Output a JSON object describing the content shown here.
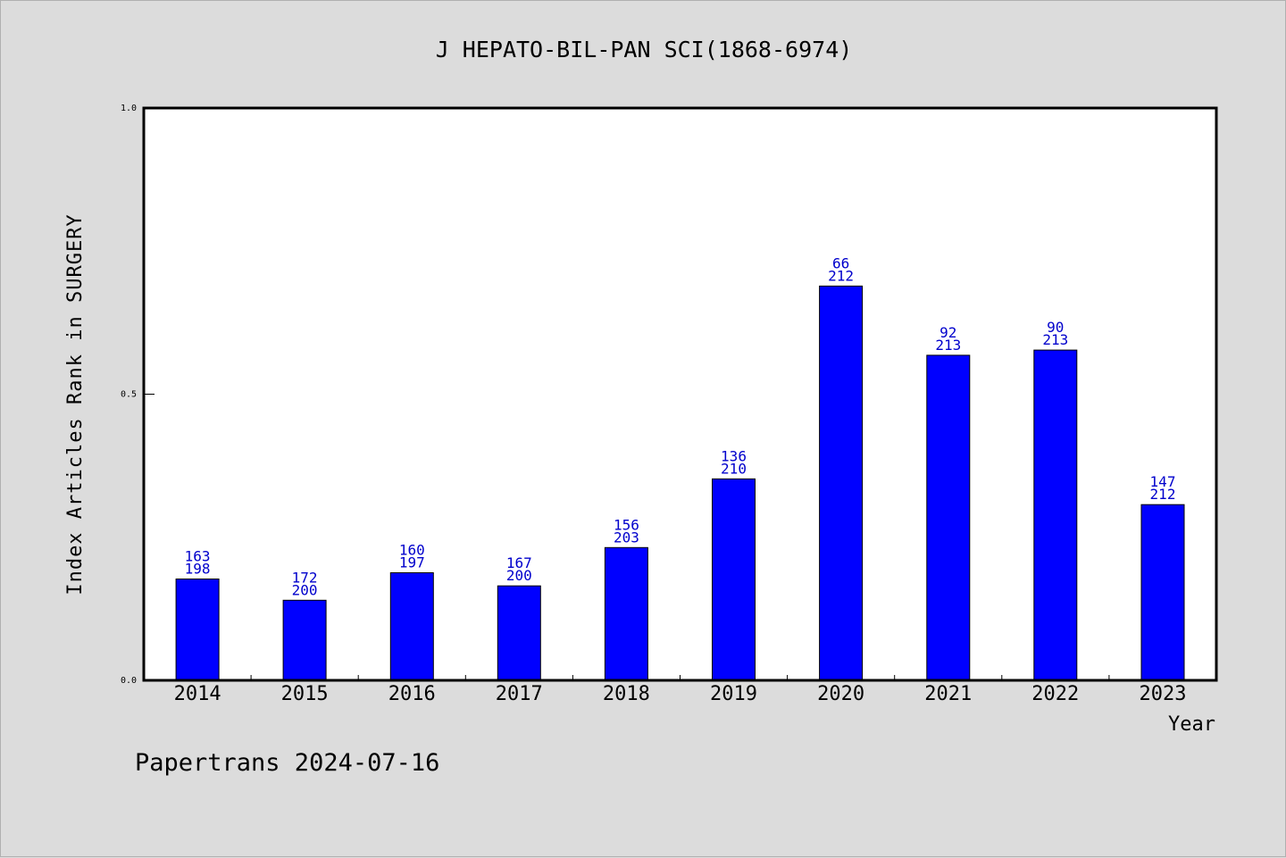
{
  "chart_data": {
    "type": "bar",
    "title": "J HEPATO-BIL-PAN SCI(1868-6974)",
    "xlabel": "Year",
    "ylabel": "Index Articles Rank in SURGERY",
    "ylim": [
      0,
      1.0
    ],
    "yticks": [
      "0.0",
      "0.5",
      "1.0"
    ],
    "ytick_values": [
      0.0,
      0.5,
      1.0
    ],
    "categories": [
      "2014",
      "2015",
      "2016",
      "2017",
      "2018",
      "2019",
      "2020",
      "2021",
      "2022",
      "2023"
    ],
    "values": [
      0.177,
      0.14,
      0.188,
      0.165,
      0.232,
      0.352,
      0.689,
      0.568,
      0.577,
      0.307
    ],
    "rank": [
      "163",
      "172",
      "160",
      "167",
      "156",
      "136",
      "66",
      "92",
      "90",
      "147"
    ],
    "total": [
      "198",
      "200",
      "197",
      "200",
      "203",
      "210",
      "212",
      "213",
      "213",
      "212"
    ],
    "grid": false,
    "bar_color": "#0000ff",
    "label_color": "#0000cc"
  },
  "footer": "Papertrans 2024-07-16"
}
